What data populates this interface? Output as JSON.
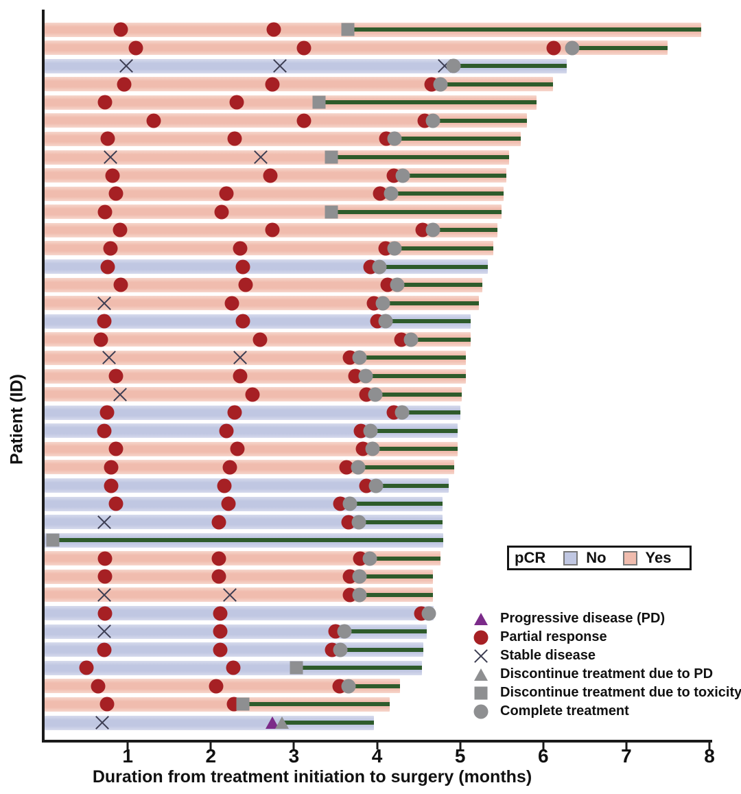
{
  "axis": {
    "x_label": "Duration from treatment initiation to surgery (months)",
    "y_label": "Patient (ID)",
    "x_min": 0,
    "x_max": 8,
    "x_ticks": [
      1,
      2,
      3,
      4,
      5,
      6,
      7,
      8
    ]
  },
  "pcr_legend": {
    "title": "pCR",
    "items": [
      {
        "label": "No",
        "color": "#c0c7e2"
      },
      {
        "label": "Yes",
        "color": "#f0bcae"
      }
    ]
  },
  "marker_legend": [
    {
      "marker": "pd",
      "label": "Progressive disease (PD)"
    },
    {
      "marker": "pr",
      "label": "Partial response"
    },
    {
      "marker": "sd",
      "label": "Stable disease"
    },
    {
      "marker": "dpd",
      "label": "Discontinue treatment due to PD"
    },
    {
      "marker": "tox",
      "label": "Discontinue treatment due to toxicity"
    },
    {
      "marker": "ct",
      "label": "Complete treatment"
    }
  ],
  "colors": {
    "pcr_yes": "#f0bcae",
    "pcr_no": "#c0c7e2",
    "green_line": "#2e5b2b",
    "partial_response_red": "#a62024",
    "marker_gray": "#8e8f91",
    "progressive_purple": "#7b2b89",
    "x_mark": "#3c3d52",
    "axis": "#1a1a1a"
  },
  "chart_data": {
    "type": "swimmer",
    "x_unit": "months",
    "x_range": [
      0,
      8
    ],
    "marker_types": {
      "pd": "Progressive disease (PD)",
      "pr": "Partial response",
      "sd": "Stable disease",
      "dpd": "Discontinue treatment due to PD",
      "tox": "Discontinue treatment due to toxicity",
      "ct": "Complete treatment"
    },
    "patients": [
      {
        "pcr": "Yes",
        "end": 7.9,
        "line": [
          3.65,
          7.9
        ],
        "markers": [
          {
            "t": "pr",
            "x": 0.92
          },
          {
            "t": "pr",
            "x": 2.76
          },
          {
            "t": "tox",
            "x": 3.65
          }
        ]
      },
      {
        "pcr": "Yes",
        "end": 7.5,
        "line": [
          6.35,
          7.5
        ],
        "markers": [
          {
            "t": "pr",
            "x": 1.1
          },
          {
            "t": "pr",
            "x": 3.12
          },
          {
            "t": "pr",
            "x": 6.13
          },
          {
            "t": "ct",
            "x": 6.35
          }
        ]
      },
      {
        "pcr": "No",
        "end": 6.28,
        "line": [
          4.92,
          6.28
        ],
        "markers": [
          {
            "t": "sd",
            "x": 0.98
          },
          {
            "t": "sd",
            "x": 2.83
          },
          {
            "t": "sd",
            "x": 4.81
          },
          {
            "t": "ct",
            "x": 4.92
          }
        ]
      },
      {
        "pcr": "Yes",
        "end": 6.12,
        "line": [
          4.76,
          6.12
        ],
        "markers": [
          {
            "t": "pr",
            "x": 0.96
          },
          {
            "t": "pr",
            "x": 2.74
          },
          {
            "t": "pr",
            "x": 4.66
          },
          {
            "t": "ct",
            "x": 4.76
          }
        ]
      },
      {
        "pcr": "Yes",
        "end": 5.92,
        "line": [
          3.3,
          5.92
        ],
        "markers": [
          {
            "t": "pr",
            "x": 0.73
          },
          {
            "t": "pr",
            "x": 2.31
          },
          {
            "t": "tox",
            "x": 3.3
          }
        ]
      },
      {
        "pcr": "Yes",
        "end": 5.8,
        "line": [
          4.67,
          5.8
        ],
        "markers": [
          {
            "t": "pr",
            "x": 1.31
          },
          {
            "t": "pr",
            "x": 3.12
          },
          {
            "t": "pr",
            "x": 4.57
          },
          {
            "t": "ct",
            "x": 4.67
          }
        ]
      },
      {
        "pcr": "Yes",
        "end": 5.73,
        "line": [
          4.21,
          5.73
        ],
        "markers": [
          {
            "t": "pr",
            "x": 0.76
          },
          {
            "t": "pr",
            "x": 2.29
          },
          {
            "t": "pr",
            "x": 4.11
          },
          {
            "t": "ct",
            "x": 4.21
          }
        ]
      },
      {
        "pcr": "Yes",
        "end": 5.59,
        "line": [
          3.45,
          5.59
        ],
        "markers": [
          {
            "t": "sd",
            "x": 0.79
          },
          {
            "t": "sd",
            "x": 2.6
          },
          {
            "t": "tox",
            "x": 3.45
          }
        ]
      },
      {
        "pcr": "Yes",
        "end": 5.56,
        "line": [
          4.31,
          5.56
        ],
        "markers": [
          {
            "t": "pr",
            "x": 0.82
          },
          {
            "t": "pr",
            "x": 2.72
          },
          {
            "t": "pr",
            "x": 4.2
          },
          {
            "t": "ct",
            "x": 4.31
          }
        ]
      },
      {
        "pcr": "Yes",
        "end": 5.52,
        "line": [
          4.17,
          5.52
        ],
        "markers": [
          {
            "t": "pr",
            "x": 0.86
          },
          {
            "t": "pr",
            "x": 2.19
          },
          {
            "t": "pr",
            "x": 4.04
          },
          {
            "t": "ct",
            "x": 4.17
          }
        ]
      },
      {
        "pcr": "Yes",
        "end": 5.5,
        "line": [
          3.45,
          5.5
        ],
        "markers": [
          {
            "t": "pr",
            "x": 0.73
          },
          {
            "t": "pr",
            "x": 2.13
          },
          {
            "t": "tox",
            "x": 3.45
          }
        ]
      },
      {
        "pcr": "Yes",
        "end": 5.45,
        "line": [
          4.67,
          5.45
        ],
        "markers": [
          {
            "t": "pr",
            "x": 0.91
          },
          {
            "t": "pr",
            "x": 2.74
          },
          {
            "t": "pr",
            "x": 4.55
          },
          {
            "t": "ct",
            "x": 4.67
          }
        ]
      },
      {
        "pcr": "Yes",
        "end": 5.4,
        "line": [
          4.21,
          5.4
        ],
        "markers": [
          {
            "t": "pr",
            "x": 0.79
          },
          {
            "t": "pr",
            "x": 2.35
          },
          {
            "t": "pr",
            "x": 4.1
          },
          {
            "t": "ct",
            "x": 4.21
          }
        ]
      },
      {
        "pcr": "No",
        "end": 5.33,
        "line": [
          4.03,
          5.33
        ],
        "markers": [
          {
            "t": "pr",
            "x": 0.76
          },
          {
            "t": "pr",
            "x": 2.39
          },
          {
            "t": "pr",
            "x": 3.92
          },
          {
            "t": "ct",
            "x": 4.03
          }
        ]
      },
      {
        "pcr": "Yes",
        "end": 5.27,
        "line": [
          4.24,
          5.27
        ],
        "markers": [
          {
            "t": "pr",
            "x": 0.92
          },
          {
            "t": "pr",
            "x": 2.42
          },
          {
            "t": "pr",
            "x": 4.13
          },
          {
            "t": "ct",
            "x": 4.24
          }
        ]
      },
      {
        "pcr": "Yes",
        "end": 5.23,
        "line": [
          4.07,
          5.23
        ],
        "markers": [
          {
            "t": "sd",
            "x": 0.72
          },
          {
            "t": "pr",
            "x": 2.25
          },
          {
            "t": "pr",
            "x": 3.96
          },
          {
            "t": "ct",
            "x": 4.07
          }
        ]
      },
      {
        "pcr": "No",
        "end": 5.13,
        "line": [
          4.1,
          5.13
        ],
        "markers": [
          {
            "t": "pr",
            "x": 0.72
          },
          {
            "t": "pr",
            "x": 2.39
          },
          {
            "t": "pr",
            "x": 4.0
          },
          {
            "t": "ct",
            "x": 4.1
          }
        ]
      },
      {
        "pcr": "Yes",
        "end": 5.13,
        "line": [
          4.41,
          5.13
        ],
        "markers": [
          {
            "t": "pr",
            "x": 0.68
          },
          {
            "t": "pr",
            "x": 2.59
          },
          {
            "t": "pr",
            "x": 4.29
          },
          {
            "t": "ct",
            "x": 4.41
          }
        ]
      },
      {
        "pcr": "Yes",
        "end": 5.07,
        "line": [
          3.79,
          5.07
        ],
        "markers": [
          {
            "t": "sd",
            "x": 0.78
          },
          {
            "t": "sd",
            "x": 2.35
          },
          {
            "t": "pr",
            "x": 3.67
          },
          {
            "t": "ct",
            "x": 3.79
          }
        ]
      },
      {
        "pcr": "Yes",
        "end": 5.07,
        "line": [
          3.86,
          5.07
        ],
        "markers": [
          {
            "t": "pr",
            "x": 0.86
          },
          {
            "t": "pr",
            "x": 2.35
          },
          {
            "t": "pr",
            "x": 3.74
          },
          {
            "t": "ct",
            "x": 3.86
          }
        ]
      },
      {
        "pcr": "Yes",
        "end": 5.02,
        "line": [
          3.98,
          5.02
        ],
        "markers": [
          {
            "t": "sd",
            "x": 0.91
          },
          {
            "t": "pr",
            "x": 2.5
          },
          {
            "t": "pr",
            "x": 3.87
          },
          {
            "t": "ct",
            "x": 3.98
          }
        ]
      },
      {
        "pcr": "No",
        "end": 5.0,
        "line": [
          4.3,
          5.0
        ],
        "markers": [
          {
            "t": "pr",
            "x": 0.75
          },
          {
            "t": "pr",
            "x": 2.29
          },
          {
            "t": "pr",
            "x": 4.2
          },
          {
            "t": "ct",
            "x": 4.3
          }
        ]
      },
      {
        "pcr": "No",
        "end": 4.97,
        "line": [
          3.92,
          4.97
        ],
        "markers": [
          {
            "t": "pr",
            "x": 0.72
          },
          {
            "t": "pr",
            "x": 2.19
          },
          {
            "t": "pr",
            "x": 3.81
          },
          {
            "t": "ct",
            "x": 3.92
          }
        ]
      },
      {
        "pcr": "Yes",
        "end": 4.97,
        "line": [
          3.95,
          4.97
        ],
        "markers": [
          {
            "t": "pr",
            "x": 0.86
          },
          {
            "t": "pr",
            "x": 2.32
          },
          {
            "t": "pr",
            "x": 3.83
          },
          {
            "t": "ct",
            "x": 3.95
          }
        ]
      },
      {
        "pcr": "Yes",
        "end": 4.93,
        "line": [
          3.77,
          4.93
        ],
        "markers": [
          {
            "t": "pr",
            "x": 0.8
          },
          {
            "t": "pr",
            "x": 2.23
          },
          {
            "t": "pr",
            "x": 3.63
          },
          {
            "t": "ct",
            "x": 3.77
          }
        ]
      },
      {
        "pcr": "No",
        "end": 4.86,
        "line": [
          3.99,
          4.86
        ],
        "markers": [
          {
            "t": "pr",
            "x": 0.8
          },
          {
            "t": "pr",
            "x": 2.16
          },
          {
            "t": "pr",
            "x": 3.87
          },
          {
            "t": "ct",
            "x": 3.99
          }
        ]
      },
      {
        "pcr": "No",
        "end": 4.79,
        "line": [
          3.67,
          4.79
        ],
        "markers": [
          {
            "t": "pr",
            "x": 0.86
          },
          {
            "t": "pr",
            "x": 2.21
          },
          {
            "t": "pr",
            "x": 3.56
          },
          {
            "t": "ct",
            "x": 3.67
          }
        ]
      },
      {
        "pcr": "No",
        "end": 4.79,
        "line": [
          3.78,
          4.79
        ],
        "markers": [
          {
            "t": "sd",
            "x": 0.72
          },
          {
            "t": "pr",
            "x": 2.1
          },
          {
            "t": "pr",
            "x": 3.66
          },
          {
            "t": "ct",
            "x": 3.78
          }
        ]
      },
      {
        "pcr": "No",
        "end": 4.8,
        "line": [
          0.1,
          4.8
        ],
        "markers": [
          {
            "t": "tox",
            "x": 0.1
          }
        ]
      },
      {
        "pcr": "Yes",
        "end": 4.76,
        "line": [
          3.91,
          4.76
        ],
        "markers": [
          {
            "t": "pr",
            "x": 0.73
          },
          {
            "t": "pr",
            "x": 2.1
          },
          {
            "t": "pr",
            "x": 3.8
          },
          {
            "t": "ct",
            "x": 3.91
          }
        ]
      },
      {
        "pcr": "Yes",
        "end": 4.67,
        "line": [
          3.79,
          4.67
        ],
        "markers": [
          {
            "t": "pr",
            "x": 0.73
          },
          {
            "t": "pr",
            "x": 2.1
          },
          {
            "t": "pr",
            "x": 3.67
          },
          {
            "t": "ct",
            "x": 3.79
          }
        ]
      },
      {
        "pcr": "Yes",
        "end": 4.67,
        "line": [
          3.79,
          4.67
        ],
        "markers": [
          {
            "t": "sd",
            "x": 0.72
          },
          {
            "t": "sd",
            "x": 2.23
          },
          {
            "t": "pr",
            "x": 3.67
          },
          {
            "t": "ct",
            "x": 3.79
          }
        ]
      },
      {
        "pcr": "No",
        "end": 4.68,
        "line": [
          4.62,
          4.68
        ],
        "markers": [
          {
            "t": "pr",
            "x": 0.73
          },
          {
            "t": "pr",
            "x": 2.11
          },
          {
            "t": "pr",
            "x": 4.53
          },
          {
            "t": "ct",
            "x": 4.62
          }
        ]
      },
      {
        "pcr": "No",
        "end": 4.6,
        "line": [
          3.61,
          4.6
        ],
        "markers": [
          {
            "t": "sd",
            "x": 0.72
          },
          {
            "t": "pr",
            "x": 2.11
          },
          {
            "t": "pr",
            "x": 3.5
          },
          {
            "t": "ct",
            "x": 3.61
          }
        ]
      },
      {
        "pcr": "No",
        "end": 4.56,
        "line": [
          3.56,
          4.56
        ],
        "markers": [
          {
            "t": "pr",
            "x": 0.72
          },
          {
            "t": "pr",
            "x": 2.11
          },
          {
            "t": "pr",
            "x": 3.46
          },
          {
            "t": "ct",
            "x": 3.56
          }
        ]
      },
      {
        "pcr": "No",
        "end": 4.54,
        "line": [
          3.03,
          4.54
        ],
        "markers": [
          {
            "t": "pr",
            "x": 0.5
          },
          {
            "t": "pr",
            "x": 2.27
          },
          {
            "t": "tox",
            "x": 3.03
          }
        ]
      },
      {
        "pcr": "Yes",
        "end": 4.28,
        "line": [
          3.66,
          4.28
        ],
        "markers": [
          {
            "t": "pr",
            "x": 0.64
          },
          {
            "t": "pr",
            "x": 2.06
          },
          {
            "t": "pr",
            "x": 3.55
          },
          {
            "t": "ct",
            "x": 3.66
          }
        ]
      },
      {
        "pcr": "Yes",
        "end": 4.15,
        "line": [
          2.39,
          4.15
        ],
        "markers": [
          {
            "t": "pr",
            "x": 0.75
          },
          {
            "t": "pr",
            "x": 2.28
          },
          {
            "t": "tox",
            "x": 2.39
          }
        ]
      },
      {
        "pcr": "No",
        "end": 3.96,
        "line": [
          2.86,
          3.96
        ],
        "markers": [
          {
            "t": "sd",
            "x": 0.69
          },
          {
            "t": "pd",
            "x": 2.74
          },
          {
            "t": "dpd",
            "x": 2.86
          }
        ]
      }
    ]
  }
}
